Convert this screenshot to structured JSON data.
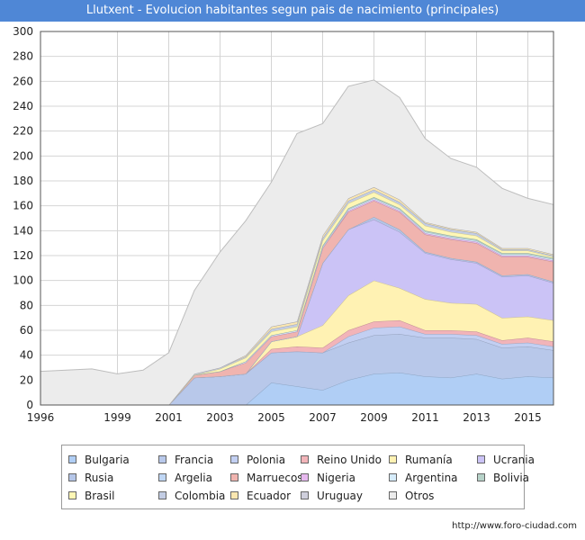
{
  "chart_data": {
    "type": "area",
    "stacked": true,
    "title": "Llutxent - Evolucion habitantes segun pais de nacimiento (principales)",
    "source": "http://www.foro-ciudad.com",
    "x": [
      1996,
      1998,
      1999,
      2000,
      2001,
      2002,
      2003,
      2004,
      2005,
      2006,
      2007,
      2008,
      2009,
      2010,
      2011,
      2012,
      2013,
      2014,
      2015,
      2016
    ],
    "x_ticks": [
      "1996",
      "1999",
      "2001",
      "2003",
      "2005",
      "2007",
      "2009",
      "2011",
      "2013",
      "2015"
    ],
    "x_tick_values": [
      1996,
      1999,
      2001,
      2003,
      2005,
      2007,
      2009,
      2011,
      2013,
      2015
    ],
    "x_range": [
      1996,
      2016
    ],
    "ylim": [
      0,
      300
    ],
    "y_ticks": [
      0,
      20,
      40,
      60,
      80,
      100,
      120,
      140,
      160,
      180,
      200,
      220,
      240,
      260,
      280,
      300
    ],
    "grid": true,
    "legend_position": "bottom",
    "series": [
      {
        "name": "Bulgaria",
        "color": "#b0cef5",
        "values": [
          0,
          0,
          0,
          0,
          0,
          0,
          0,
          0,
          18,
          15,
          12,
          20,
          25,
          26,
          23,
          22,
          25,
          21,
          23,
          22
        ]
      },
      {
        "name": "Francia",
        "color": "#b8c8ea",
        "values": [
          0,
          0,
          0,
          0,
          0,
          22,
          23,
          25,
          24,
          28,
          30,
          30,
          31,
          31,
          31,
          32,
          28,
          25,
          24,
          22
        ]
      },
      {
        "name": "Polonia",
        "color": "#c2cff2",
        "values": [
          0,
          0,
          0,
          0,
          0,
          0,
          0,
          0,
          0,
          0,
          0,
          5,
          6,
          6,
          3,
          3,
          3,
          3,
          3,
          3
        ]
      },
      {
        "name": "Reino Unido",
        "color": "#f2b4b9",
        "values": [
          0,
          0,
          0,
          0,
          0,
          0,
          0,
          0,
          3,
          4,
          4,
          5,
          5,
          5,
          3,
          3,
          3,
          3,
          4,
          4
        ]
      },
      {
        "name": "Rumanía",
        "color": "#fff2b3",
        "values": [
          0,
          0,
          0,
          0,
          0,
          0,
          0,
          0,
          6,
          8,
          18,
          28,
          33,
          26,
          25,
          22,
          22,
          18,
          17,
          17
        ]
      },
      {
        "name": "Ucrania",
        "color": "#cbc3f6",
        "values": [
          0,
          0,
          0,
          0,
          0,
          0,
          0,
          0,
          0,
          0,
          50,
          53,
          49,
          45,
          37,
          35,
          33,
          33,
          33,
          30
        ]
      },
      {
        "name": "Rusia",
        "color": "#b5c6e8",
        "values": [
          0,
          0,
          0,
          0,
          0,
          0,
          0,
          0,
          0,
          0,
          0,
          0,
          2,
          2,
          1,
          1,
          1,
          1,
          1,
          1
        ]
      },
      {
        "name": "Argelia",
        "color": "#bfd6f4",
        "values": [
          0,
          0,
          0,
          0,
          0,
          0,
          0,
          0,
          0,
          0,
          0,
          0,
          0,
          0,
          0,
          0,
          0,
          0,
          0,
          0
        ]
      },
      {
        "name": "Marruecos",
        "color": "#f0b4af",
        "values": [
          0,
          0,
          0,
          0,
          0,
          2,
          4,
          9,
          4,
          4,
          12,
          14,
          13,
          14,
          14,
          15,
          15,
          15,
          14,
          16
        ]
      },
      {
        "name": "Nigeria",
        "color": "#e6b8ee",
        "values": [
          0,
          0,
          0,
          0,
          0,
          0,
          0,
          0,
          0,
          0,
          0,
          1,
          1,
          1,
          1,
          1,
          1,
          1,
          1,
          1
        ]
      },
      {
        "name": "Argentina",
        "color": "#d6ecfb",
        "values": [
          0,
          0,
          0,
          0,
          0,
          0,
          0,
          1,
          1,
          1,
          1,
          1,
          1,
          1,
          1,
          1,
          1,
          1,
          1,
          1
        ]
      },
      {
        "name": "Bolivia",
        "color": "#b6d2c8",
        "values": [
          0,
          0,
          0,
          0,
          0,
          0,
          0,
          0,
          0,
          0,
          1,
          1,
          1,
          1,
          1,
          1,
          1,
          1,
          1,
          1
        ]
      },
      {
        "name": "Brasil",
        "color": "#fff7b5",
        "values": [
          0,
          0,
          0,
          0,
          0,
          0,
          2,
          3,
          3,
          3,
          4,
          4,
          4,
          3,
          4,
          3,
          3,
          2,
          2,
          1
        ]
      },
      {
        "name": "Colombia",
        "color": "#c3cde4",
        "values": [
          0,
          0,
          0,
          0,
          0,
          1,
          1,
          1,
          2,
          2,
          2,
          2,
          2,
          2,
          2,
          2,
          2,
          1,
          1,
          1
        ]
      },
      {
        "name": "Ecuador",
        "color": "#fbe7b0",
        "values": [
          0,
          0,
          0,
          0,
          0,
          0,
          0,
          1,
          2,
          2,
          2,
          2,
          2,
          2,
          1,
          1,
          1,
          1,
          1,
          1
        ]
      },
      {
        "name": "Uruguay",
        "color": "#cfcfdc",
        "values": [
          0,
          0,
          0,
          0,
          0,
          0,
          0,
          0,
          0,
          0,
          0,
          0,
          0,
          0,
          0,
          0,
          0,
          0,
          0,
          0
        ]
      },
      {
        "name": "Otros",
        "color": "#ececec",
        "values": [
          27,
          29,
          25,
          28,
          42,
          67,
          93,
          108,
          116,
          151,
          90,
          90,
          86,
          82,
          67,
          56,
          52,
          48,
          40,
          40
        ]
      }
    ]
  }
}
